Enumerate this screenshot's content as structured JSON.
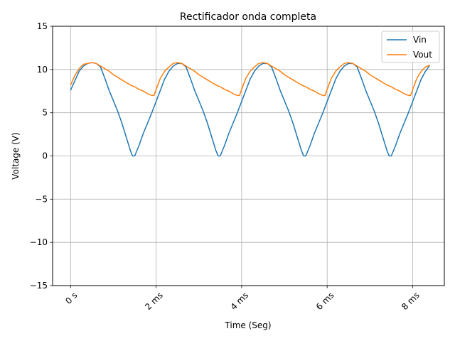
{
  "chart_data": {
    "type": "line",
    "title": "Rectificador onda completa",
    "xlabel": "Time (Seg)",
    "ylabel": "Voltage (V)",
    "xlim": [
      -0.00042,
      0.00874
    ],
    "ylim": [
      -15,
      15
    ],
    "x_ticks": [
      {
        "value": 0,
        "label": "0 s"
      },
      {
        "value": 0.002,
        "label": "2 ms"
      },
      {
        "value": 0.004,
        "label": "4 ms"
      },
      {
        "value": 0.006,
        "label": "6 ms"
      },
      {
        "value": 0.008,
        "label": "8 ms"
      }
    ],
    "y_ticks": [
      {
        "value": 15,
        "label": "15"
      },
      {
        "value": 10,
        "label": "10"
      },
      {
        "value": 5,
        "label": "5"
      },
      {
        "value": 0,
        "label": "0"
      },
      {
        "value": -5,
        "label": "−5"
      },
      {
        "value": -10,
        "label": "−10"
      },
      {
        "value": -15,
        "label": "−15"
      }
    ],
    "x_tick_label_rotation": "45 degrees",
    "grid": true,
    "legend_position": "top-right",
    "series": [
      {
        "name": "Vin",
        "color": "#1f77b4",
        "points": [
          [
            0,
            7.6
          ],
          [
            0.0001,
            8.7
          ],
          [
            0.0002,
            9.8
          ],
          [
            0.0003,
            10.4
          ],
          [
            0.0004,
            10.7
          ],
          [
            0.0005,
            10.8
          ],
          [
            0.0006,
            10.7
          ],
          [
            0.0007,
            10.3
          ],
          [
            0.0008,
            9.0
          ],
          [
            0.0009,
            7.6
          ],
          [
            0.001,
            6.4
          ],
          [
            0.0011,
            5.2
          ],
          [
            0.0012,
            3.8
          ],
          [
            0.0013,
            2.2
          ],
          [
            0.0014,
            0.6
          ],
          [
            0.00145,
            0.0
          ],
          [
            0.0015,
            0.0
          ],
          [
            0.0016,
            1.2
          ],
          [
            0.0017,
            2.6
          ],
          [
            0.0018,
            3.8
          ],
          [
            0.0019,
            5.0
          ],
          [
            0.002,
            6.3
          ],
          [
            0.0021,
            7.6
          ],
          [
            0.0022,
            8.9
          ],
          [
            0.0023,
            9.8
          ],
          [
            0.0024,
            10.4
          ],
          [
            0.0025,
            10.7
          ],
          [
            0.0026,
            10.7
          ],
          [
            0.0027,
            10.3
          ],
          [
            0.0028,
            9.0
          ],
          [
            0.0029,
            7.6
          ],
          [
            0.003,
            6.4
          ],
          [
            0.0031,
            5.2
          ],
          [
            0.0032,
            3.8
          ],
          [
            0.0033,
            2.2
          ],
          [
            0.0034,
            0.6
          ],
          [
            0.00345,
            0.0
          ],
          [
            0.0035,
            0.0
          ],
          [
            0.0036,
            1.2
          ],
          [
            0.0037,
            2.6
          ],
          [
            0.0038,
            3.8
          ],
          [
            0.0039,
            5.0
          ],
          [
            0.004,
            6.3
          ],
          [
            0.0041,
            7.6
          ],
          [
            0.0042,
            8.9
          ],
          [
            0.0043,
            9.8
          ],
          [
            0.0044,
            10.4
          ],
          [
            0.0045,
            10.7
          ],
          [
            0.0046,
            10.7
          ],
          [
            0.0047,
            10.3
          ],
          [
            0.0048,
            9.0
          ],
          [
            0.0049,
            7.6
          ],
          [
            0.005,
            6.4
          ],
          [
            0.0051,
            5.2
          ],
          [
            0.0052,
            3.8
          ],
          [
            0.0053,
            2.2
          ],
          [
            0.0054,
            0.6
          ],
          [
            0.00545,
            0.0
          ],
          [
            0.0055,
            0.0
          ],
          [
            0.0056,
            1.2
          ],
          [
            0.0057,
            2.6
          ],
          [
            0.0058,
            3.8
          ],
          [
            0.0059,
            5.0
          ],
          [
            0.006,
            6.3
          ],
          [
            0.0061,
            7.6
          ],
          [
            0.0062,
            8.9
          ],
          [
            0.0063,
            9.8
          ],
          [
            0.0064,
            10.4
          ],
          [
            0.0065,
            10.7
          ],
          [
            0.0066,
            10.7
          ],
          [
            0.0067,
            10.3
          ],
          [
            0.0068,
            9.0
          ],
          [
            0.0069,
            7.6
          ],
          [
            0.007,
            6.4
          ],
          [
            0.0071,
            5.2
          ],
          [
            0.0072,
            3.8
          ],
          [
            0.0073,
            2.2
          ],
          [
            0.0074,
            0.6
          ],
          [
            0.00745,
            0.0
          ],
          [
            0.0075,
            0.0
          ],
          [
            0.0076,
            1.2
          ],
          [
            0.0077,
            2.6
          ],
          [
            0.0078,
            3.8
          ],
          [
            0.0079,
            5.0
          ],
          [
            0.008,
            6.3
          ],
          [
            0.0081,
            7.6
          ],
          [
            0.0082,
            8.9
          ],
          [
            0.0083,
            9.8
          ],
          [
            0.0084,
            10.5
          ]
        ]
      },
      {
        "name": "Vout",
        "color": "#ff7f0e",
        "points": [
          [
            0,
            8.2
          ],
          [
            0.0001,
            9.3
          ],
          [
            0.0002,
            10.1
          ],
          [
            0.0003,
            10.6
          ],
          [
            0.0004,
            10.7
          ],
          [
            0.0005,
            10.8
          ],
          [
            0.0006,
            10.7
          ],
          [
            0.0007,
            10.4
          ],
          [
            0.0008,
            10.1
          ],
          [
            0.0009,
            9.8
          ],
          [
            0.001,
            9.4
          ],
          [
            0.0011,
            9.1
          ],
          [
            0.0012,
            8.8
          ],
          [
            0.0013,
            8.5
          ],
          [
            0.0014,
            8.2
          ],
          [
            0.0015,
            8.0
          ],
          [
            0.0016,
            7.7
          ],
          [
            0.0017,
            7.5
          ],
          [
            0.0018,
            7.2
          ],
          [
            0.0019,
            7.0
          ],
          [
            0.00195,
            7.0
          ],
          [
            0.002,
            7.7
          ],
          [
            0.0021,
            9.0
          ],
          [
            0.0022,
            9.8
          ],
          [
            0.0023,
            10.3
          ],
          [
            0.0024,
            10.7
          ],
          [
            0.0025,
            10.8
          ],
          [
            0.0026,
            10.7
          ],
          [
            0.0027,
            10.4
          ],
          [
            0.0028,
            10.1
          ],
          [
            0.0029,
            9.8
          ],
          [
            0.003,
            9.4
          ],
          [
            0.0031,
            9.1
          ],
          [
            0.0032,
            8.8
          ],
          [
            0.0033,
            8.5
          ],
          [
            0.0034,
            8.2
          ],
          [
            0.0035,
            8.0
          ],
          [
            0.0036,
            7.7
          ],
          [
            0.0037,
            7.5
          ],
          [
            0.0038,
            7.2
          ],
          [
            0.0039,
            7.0
          ],
          [
            0.00395,
            7.0
          ],
          [
            0.004,
            7.7
          ],
          [
            0.0041,
            9.0
          ],
          [
            0.0042,
            9.8
          ],
          [
            0.0043,
            10.3
          ],
          [
            0.0044,
            10.7
          ],
          [
            0.0045,
            10.8
          ],
          [
            0.0046,
            10.7
          ],
          [
            0.0047,
            10.4
          ],
          [
            0.0048,
            10.1
          ],
          [
            0.0049,
            9.8
          ],
          [
            0.005,
            9.4
          ],
          [
            0.0051,
            9.1
          ],
          [
            0.0052,
            8.8
          ],
          [
            0.0053,
            8.5
          ],
          [
            0.0054,
            8.2
          ],
          [
            0.0055,
            8.0
          ],
          [
            0.0056,
            7.7
          ],
          [
            0.0057,
            7.5
          ],
          [
            0.0058,
            7.2
          ],
          [
            0.0059,
            7.0
          ],
          [
            0.00595,
            7.0
          ],
          [
            0.006,
            7.7
          ],
          [
            0.0061,
            9.0
          ],
          [
            0.0062,
            9.8
          ],
          [
            0.0063,
            10.3
          ],
          [
            0.0064,
            10.7
          ],
          [
            0.0065,
            10.8
          ],
          [
            0.0066,
            10.7
          ],
          [
            0.0067,
            10.4
          ],
          [
            0.0068,
            10.1
          ],
          [
            0.0069,
            9.8
          ],
          [
            0.007,
            9.4
          ],
          [
            0.0071,
            9.1
          ],
          [
            0.0072,
            8.8
          ],
          [
            0.0073,
            8.5
          ],
          [
            0.0074,
            8.2
          ],
          [
            0.0075,
            8.0
          ],
          [
            0.0076,
            7.7
          ],
          [
            0.0077,
            7.5
          ],
          [
            0.0078,
            7.2
          ],
          [
            0.0079,
            7.0
          ],
          [
            0.00795,
            7.0
          ],
          [
            0.008,
            7.7
          ],
          [
            0.0081,
            9.0
          ],
          [
            0.0082,
            9.8
          ],
          [
            0.0083,
            10.3
          ],
          [
            0.0084,
            10.5
          ]
        ]
      }
    ]
  }
}
